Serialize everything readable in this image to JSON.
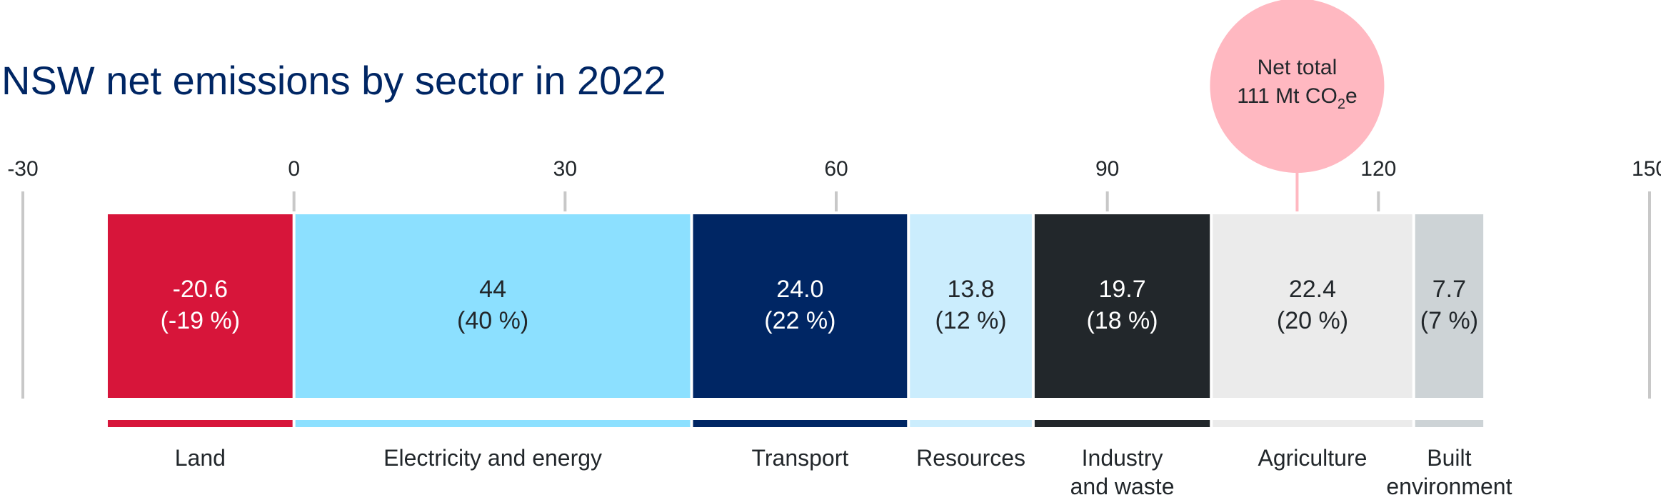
{
  "chart_data": {
    "type": "bar",
    "orientation": "horizontal-stacked",
    "title": "NSW net emissions by sector in 2022",
    "xlim": [
      -30,
      150
    ],
    "x_ticks": [
      "-30",
      "0",
      "30",
      "60",
      "90",
      "120",
      "150"
    ],
    "series": [
      {
        "name": "Land",
        "value": -20.6,
        "label": "-20.6",
        "pct_label": "(-19 %)",
        "color": "#d7153a",
        "text_color": "#ffffff"
      },
      {
        "name": "Electricity and energy",
        "value": 44,
        "label": "44",
        "pct_label": "(40 %)",
        "color": "#8ce0ff",
        "text_color": "#22272b"
      },
      {
        "name": "Transport",
        "value": 24.0,
        "label": "24.0",
        "pct_label": "(22 %)",
        "color": "#002664",
        "text_color": "#ffffff"
      },
      {
        "name": "Resources",
        "value": 13.8,
        "label": "13.8",
        "pct_label": "(12 %)",
        "color": "#cbedfd",
        "text_color": "#22272b"
      },
      {
        "name": "Industry and waste",
        "value": 19.7,
        "label": "19.7",
        "pct_label": "(18 %)",
        "color": "#22272b",
        "text_color": "#ffffff"
      },
      {
        "name": "Agriculture",
        "value": 22.4,
        "label": "22.4",
        "pct_label": "(20 %)",
        "color": "#ebebeb",
        "text_color": "#22272b"
      },
      {
        "name": "Built environment",
        "value": 7.7,
        "label": "7.7",
        "pct_label": "(7 %)",
        "color": "#cdd3d6",
        "text_color": "#22272b"
      }
    ],
    "category_labels": [
      [
        "Land"
      ],
      [
        "Electricity and energy"
      ],
      [
        "Transport"
      ],
      [
        "Resources"
      ],
      [
        "Industry",
        "and waste"
      ],
      [
        "Agriculture"
      ],
      [
        "Built",
        "environment"
      ]
    ],
    "net_total": {
      "value": 111,
      "line1": "Net total",
      "line2_prefix": "111 Mt CO",
      "line2_sub": "2",
      "line2_suffix": "e",
      "color": "#ffb8c1"
    },
    "title_color": "#002664",
    "tick_color": "#c8c8c8"
  }
}
